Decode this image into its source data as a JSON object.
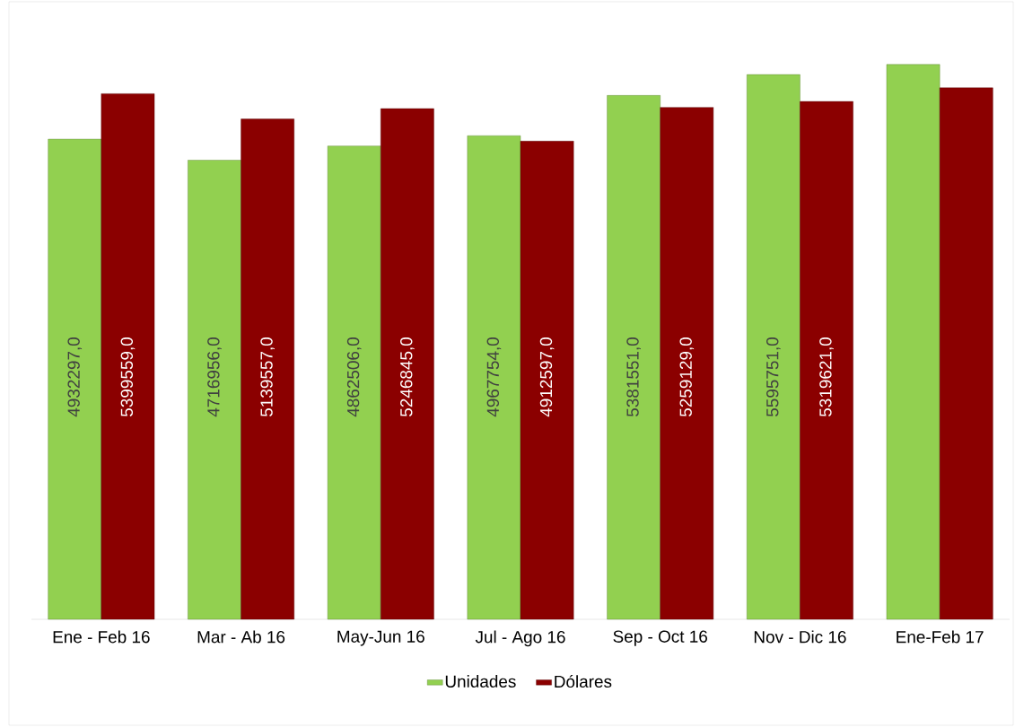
{
  "chart_data": {
    "type": "bar",
    "categories": [
      "Ene - Feb 16",
      "Mar - Ab 16",
      "May-Jun 16",
      "Jul - Ago 16",
      "Sep - Oct 16",
      "Nov - Dic 16",
      "Ene-Feb 17"
    ],
    "series": [
      {
        "name": "Unidades",
        "color": "#92d050",
        "values": [
          4932297,
          4716956,
          4862506,
          4967754,
          5381551,
          5595751,
          5700000
        ],
        "value_labels": [
          "4932297,0",
          "4716956,0",
          "4862506,0",
          "4967754,0",
          "5381551,0",
          "5595751,0",
          null
        ]
      },
      {
        "name": "Dólares",
        "color": "#8b0000",
        "values": [
          5399559,
          5139557,
          5246845,
          4912597,
          5259129,
          5319621,
          5460000
        ],
        "value_labels": [
          "5399559,0",
          "5139557,0",
          "5246845,0",
          "4912597,0",
          "5259129,0",
          "5319621,0",
          null
        ]
      }
    ],
    "tick_labels": "x",
    "legend": "bottom"
  }
}
